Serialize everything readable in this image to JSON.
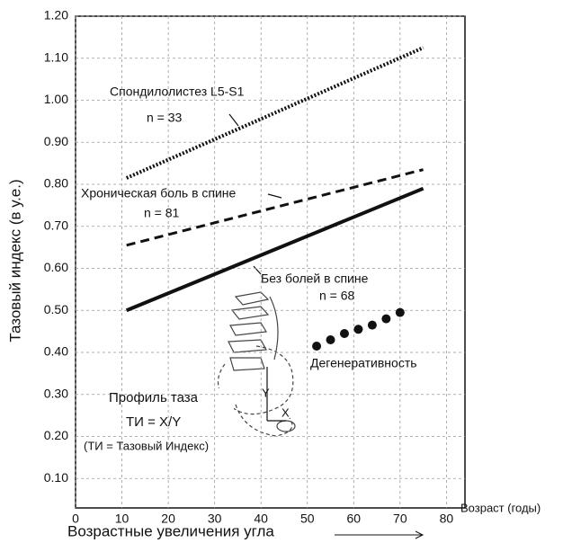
{
  "chart_data": {
    "type": "line",
    "y_label": "Тазовый индекс (в у.е.)",
    "x_label": "Возрастные увеличения угла",
    "x_unit_label": "Возраст (годы)",
    "xlim": [
      0,
      84
    ],
    "xticks": [
      0,
      10,
      20,
      30,
      40,
      50,
      60,
      70,
      80
    ],
    "ylim": [
      0.03,
      1.2
    ],
    "yticks": [
      {
        "value": 0.1,
        "label": "0.10"
      },
      {
        "value": 0.2,
        "label": "0.20"
      },
      {
        "value": 0.3,
        "label": "0.30"
      },
      {
        "value": 0.4,
        "label": "0.40"
      },
      {
        "value": 0.5,
        "label": "0.50"
      },
      {
        "value": 0.6,
        "label": "0.60"
      },
      {
        "value": 0.7,
        "label": "0.70"
      },
      {
        "value": 0.8,
        "label": "0.80"
      },
      {
        "value": 0.9,
        "label": "0.90"
      },
      {
        "value": 1.0,
        "label": "1.00"
      },
      {
        "value": 1.1,
        "label": "1.10"
      },
      {
        "value": 1.2,
        "label": "1.20"
      }
    ],
    "grid": true,
    "series": [
      {
        "name": "Спондилолистез L5-S1",
        "n": "n = 33",
        "style": "dotted",
        "color": "#111",
        "x": [
          11,
          75
        ],
        "values": [
          0.815,
          1.125
        ]
      },
      {
        "name": "Хроническая боль в спине",
        "n": "n = 81",
        "style": "dashed",
        "color": "#111",
        "x": [
          11,
          75
        ],
        "values": [
          0.655,
          0.835
        ]
      },
      {
        "name": "Без болей в спине",
        "n": "n = 68",
        "style": "solid",
        "color": "#111",
        "x": [
          11,
          75
        ],
        "values": [
          0.5,
          0.79
        ]
      },
      {
        "name": "Дегенеративность",
        "style": "dots",
        "color": "#111",
        "x": [
          52,
          55,
          58,
          61,
          64,
          67,
          70
        ],
        "values": [
          0.415,
          0.43,
          0.445,
          0.455,
          0.465,
          0.48,
          0.495
        ]
      }
    ],
    "annotations": [
      "Профиль таза",
      "ТИ = X/Y",
      "(ТИ = Тазовый Индекс)",
      "Y",
      "X"
    ]
  }
}
